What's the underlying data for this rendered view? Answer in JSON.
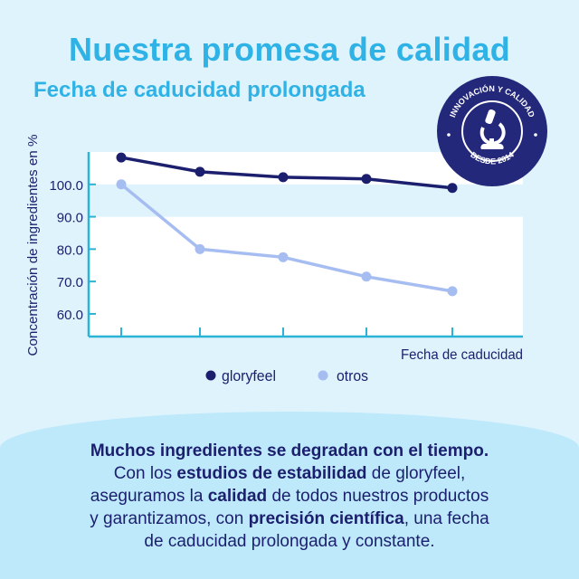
{
  "header": {
    "title": "Nuestra promesa de calidad",
    "subtitle": "Fecha de caducidad prolongada"
  },
  "badge": {
    "top_text": "INNOVACIÓN Y CALIDAD",
    "bottom_text": "DESDE 2014",
    "icon": "microscope-icon",
    "color": "#24287a"
  },
  "chart_data": {
    "type": "line",
    "xlabel": "Fecha de caducidad",
    "ylabel": "Concentración de ingredientes en %",
    "x": [
      1,
      2,
      3,
      4,
      5
    ],
    "ylim": [
      53,
      110
    ],
    "yticks": [
      "60.0",
      "70.0",
      "80.0",
      "90.0",
      "100.0"
    ],
    "grid": false,
    "legend": "bottom-center",
    "series": [
      {
        "name": "gloryfeel",
        "color": "#1c1f6e",
        "values": [
          108.3,
          103.9,
          102.2,
          101.7,
          98.9
        ]
      },
      {
        "name": "otros",
        "color": "#a6bdf2",
        "values": [
          100.0,
          80.0,
          77.5,
          71.5,
          67.0
        ]
      }
    ]
  },
  "body": {
    "segments": [
      {
        "text": "Muchos ingredientes se degradan con el tiempo.",
        "bold": true
      },
      {
        "text": "\nCon los ",
        "bold": false
      },
      {
        "text": "estudios de estabilidad",
        "bold": true
      },
      {
        "text": " de gloryfeel,\naseguramos la ",
        "bold": false
      },
      {
        "text": "calidad",
        "bold": true
      },
      {
        "text": " de todos nuestros productos\ny garantizamos, con ",
        "bold": false
      },
      {
        "text": "precisión científica",
        "bold": true
      },
      {
        "text": ", una fecha\nde caducidad prolongada y constante.",
        "bold": false
      }
    ]
  }
}
